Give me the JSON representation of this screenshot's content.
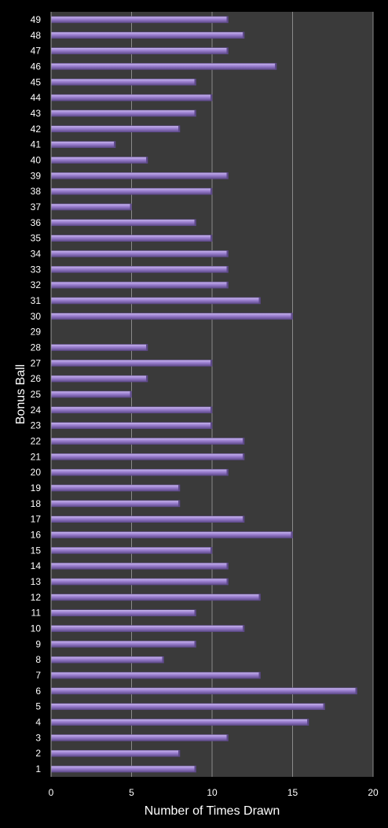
{
  "chart_data": {
    "type": "bar",
    "orientation": "horizontal",
    "xlabel": "Number of Times Drawn",
    "ylabel": "Bonus Ball",
    "xlim": [
      0,
      20
    ],
    "xticks": [
      0,
      5,
      10,
      15,
      20
    ],
    "grid": true,
    "legend": "none",
    "categories": [
      "1",
      "2",
      "3",
      "4",
      "5",
      "6",
      "7",
      "8",
      "9",
      "10",
      "11",
      "12",
      "13",
      "14",
      "15",
      "16",
      "17",
      "18",
      "19",
      "20",
      "21",
      "22",
      "23",
      "24",
      "25",
      "26",
      "27",
      "28",
      "29",
      "30",
      "31",
      "32",
      "33",
      "34",
      "35",
      "36",
      "37",
      "38",
      "39",
      "40",
      "41",
      "42",
      "43",
      "44",
      "45",
      "46",
      "47",
      "48",
      "49"
    ],
    "values": [
      9,
      8,
      11,
      16,
      17,
      19,
      13,
      7,
      9,
      12,
      9,
      13,
      11,
      11,
      10,
      15,
      12,
      8,
      8,
      11,
      12,
      12,
      10,
      10,
      5,
      6,
      10,
      6,
      0,
      15,
      13,
      11,
      11,
      11,
      10,
      9,
      5,
      10,
      11,
      6,
      4,
      8,
      9,
      10,
      9,
      14,
      11,
      12,
      11
    ]
  },
  "colors": {
    "background": "#000000",
    "plot_area": "#3a3a3a",
    "gridline": "#8a8a8a",
    "bar_fill": "#9b7fd0",
    "bar_highlight": "#c9b8ee",
    "bar_shadow": "#5e4a8a",
    "text": "#ffffff"
  }
}
